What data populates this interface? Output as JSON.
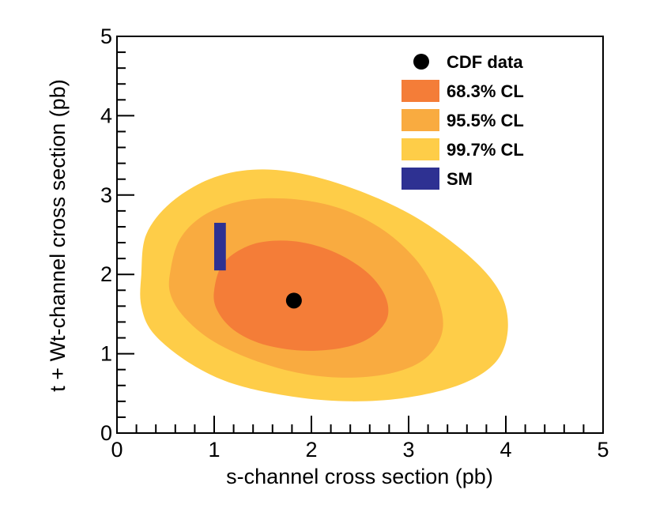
{
  "chart_data": {
    "type": "contour",
    "title": "",
    "xlabel": "s-channel cross section (pb)",
    "ylabel": "t + Wt-channel cross section (pb)",
    "xlim": [
      0,
      5
    ],
    "ylim": [
      0,
      5
    ],
    "xticks": [
      "0",
      "1",
      "2",
      "3",
      "4",
      "5"
    ],
    "yticks": [
      "0",
      "1",
      "2",
      "3",
      "4",
      "5"
    ],
    "legend_position": "top-right",
    "colors": {
      "cl997": "#fecd48",
      "cl955": "#f9ab40",
      "cl683": "#f47d38",
      "sm": "#2e3192",
      "data": "#000000"
    },
    "regions": [
      {
        "name": "99.7% CL",
        "color_key": "cl997",
        "boundary": [
          [
            0.25,
            2.0
          ],
          [
            0.3,
            2.5
          ],
          [
            0.55,
            2.9
          ],
          [
            0.95,
            3.2
          ],
          [
            1.4,
            3.32
          ],
          [
            1.9,
            3.27
          ],
          [
            2.5,
            3.05
          ],
          [
            3.1,
            2.7
          ],
          [
            3.65,
            2.2
          ],
          [
            3.95,
            1.75
          ],
          [
            4.02,
            1.3
          ],
          [
            3.9,
            0.9
          ],
          [
            3.55,
            0.62
          ],
          [
            3.0,
            0.45
          ],
          [
            2.4,
            0.4
          ],
          [
            1.8,
            0.46
          ],
          [
            1.2,
            0.62
          ],
          [
            0.75,
            0.88
          ],
          [
            0.38,
            1.25
          ],
          [
            0.25,
            1.6
          ]
        ]
      },
      {
        "name": "95.5% CL",
        "color_key": "cl955",
        "boundary": [
          [
            0.55,
            2.05
          ],
          [
            0.65,
            2.45
          ],
          [
            0.9,
            2.75
          ],
          [
            1.3,
            2.93
          ],
          [
            1.8,
            2.95
          ],
          [
            2.3,
            2.83
          ],
          [
            2.75,
            2.55
          ],
          [
            3.1,
            2.15
          ],
          [
            3.3,
            1.7
          ],
          [
            3.35,
            1.3
          ],
          [
            3.2,
            0.97
          ],
          [
            2.9,
            0.78
          ],
          [
            2.45,
            0.7
          ],
          [
            1.95,
            0.74
          ],
          [
            1.45,
            0.9
          ],
          [
            1.0,
            1.15
          ],
          [
            0.7,
            1.45
          ],
          [
            0.55,
            1.75
          ]
        ]
      },
      {
        "name": "68.3% CL",
        "color_key": "cl683",
        "boundary": [
          [
            1.0,
            1.8
          ],
          [
            1.1,
            2.15
          ],
          [
            1.4,
            2.38
          ],
          [
            1.8,
            2.42
          ],
          [
            2.2,
            2.3
          ],
          [
            2.55,
            2.05
          ],
          [
            2.75,
            1.75
          ],
          [
            2.78,
            1.45
          ],
          [
            2.6,
            1.2
          ],
          [
            2.3,
            1.07
          ],
          [
            1.9,
            1.04
          ],
          [
            1.5,
            1.12
          ],
          [
            1.2,
            1.3
          ],
          [
            1.03,
            1.55
          ]
        ]
      }
    ],
    "sm_band": {
      "x": [
        1.0,
        1.12
      ],
      "y": [
        2.05,
        2.65
      ]
    },
    "data_point": {
      "x": 1.82,
      "y": 1.67
    },
    "legend": [
      {
        "label": "CDF data",
        "marker": "circle",
        "color_key": "data"
      },
      {
        "label": "68.3% CL",
        "marker": "box",
        "color_key": "cl683"
      },
      {
        "label": "95.5% CL",
        "marker": "box",
        "color_key": "cl955"
      },
      {
        "label": "99.7% CL",
        "marker": "box",
        "color_key": "cl997"
      },
      {
        "label": "SM",
        "marker": "box",
        "color_key": "sm"
      }
    ]
  }
}
